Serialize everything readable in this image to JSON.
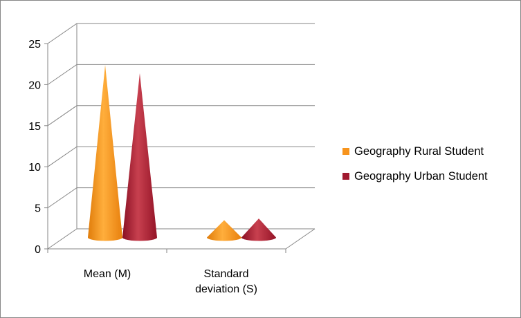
{
  "chart_data": {
    "type": "bar",
    "style": "3d-cone",
    "categories": [
      "Mean (M)",
      "Standard\ndeviation (S)"
    ],
    "series": [
      {
        "name": "Geography Rural Student",
        "color": "#F7941D",
        "values": [
          21,
          2.1
        ]
      },
      {
        "name": "Geography Urban Student",
        "color": "#A0192F",
        "values": [
          20,
          2.3
        ]
      }
    ],
    "yticks": [
      0,
      5,
      10,
      15,
      20,
      25
    ],
    "ylim": [
      0,
      25
    ],
    "grid": true,
    "legend_position": "right"
  }
}
